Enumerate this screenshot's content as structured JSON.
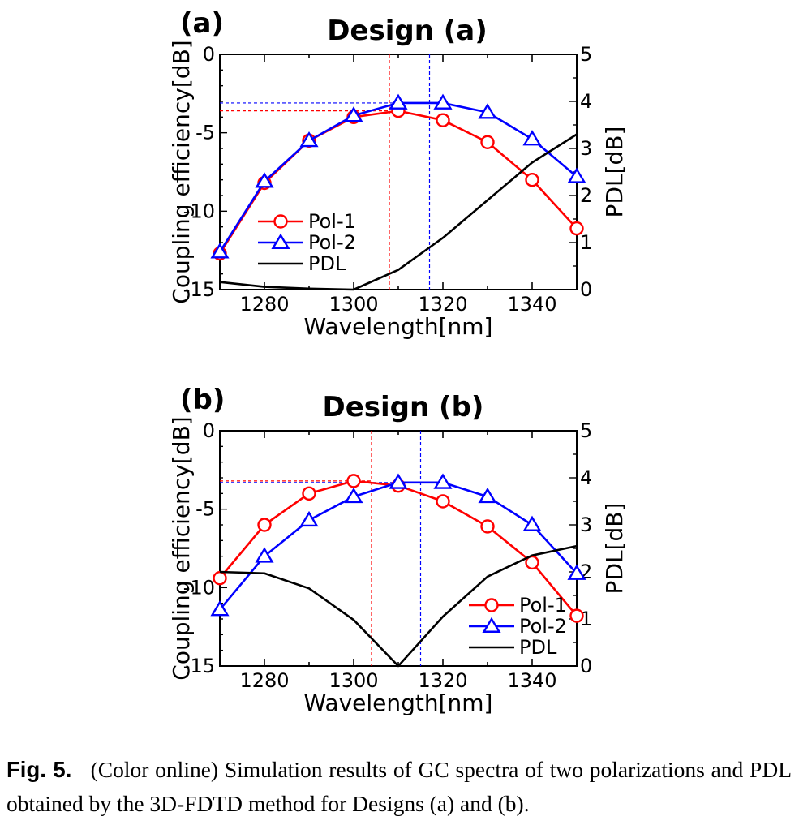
{
  "caption": {
    "label": "Fig. 5.",
    "text": "(Color online) Simulation results of GC spectra of two polarizations and PDL obtained by the 3D-FDTD method for Designs (a) and (b)."
  },
  "colors": {
    "pol1": "#ff0000",
    "pol2": "#0000ff",
    "pdl": "#000000"
  },
  "chart_data": [
    {
      "type": "line",
      "panel_label": "(a)",
      "title": "Design (a)",
      "xlabel": "Wavelength[nm]",
      "ylabel": "Coupling efficiency[dB]",
      "y2label": "PDL[dB]",
      "xlim": [
        1270,
        1350
      ],
      "ylim": [
        -15,
        0
      ],
      "y2lim": [
        0,
        5
      ],
      "xticks": [
        1280,
        1300,
        1320,
        1340
      ],
      "yticks": [
        0,
        -5,
        -10,
        -15
      ],
      "y2ticks": [
        5,
        4,
        3,
        2,
        1,
        0
      ],
      "legend_position": "lower-left",
      "x": [
        1270,
        1280,
        1290,
        1300,
        1310,
        1320,
        1330,
        1340,
        1350
      ],
      "series": [
        {
          "name": "Pol-1",
          "axis": "left",
          "marker": "circle",
          "values": [
            -12.7,
            -8.2,
            -5.5,
            -4.0,
            -3.6,
            -4.2,
            -5.6,
            -8.0,
            -11.1
          ]
        },
        {
          "name": "Pol-2",
          "axis": "left",
          "marker": "triangle",
          "values": [
            -12.6,
            -8.1,
            -5.5,
            -3.9,
            -3.1,
            -3.1,
            -3.7,
            -5.4,
            -7.8
          ]
        },
        {
          "name": "PDL",
          "axis": "right",
          "marker": "none",
          "values": [
            0.16,
            0.06,
            0.02,
            0.0,
            0.42,
            1.1,
            1.9,
            2.7,
            3.3
          ]
        }
      ],
      "reference_lines": [
        {
          "color": "pol1",
          "x": 1308,
          "y": -3.6
        },
        {
          "color": "pol2",
          "x": 1317,
          "y": -3.1
        }
      ]
    },
    {
      "type": "line",
      "panel_label": "(b)",
      "title": "Design (b)",
      "xlabel": "Wavelength[nm]",
      "ylabel": "Coupling efficiency[dB]",
      "y2label": "PDL[dB]",
      "xlim": [
        1270,
        1350
      ],
      "ylim": [
        -15,
        0
      ],
      "y2lim": [
        0,
        5
      ],
      "xticks": [
        1280,
        1300,
        1320,
        1340
      ],
      "yticks": [
        0,
        -5,
        -10,
        -15
      ],
      "y2ticks": [
        5,
        4,
        3,
        2,
        1,
        0
      ],
      "legend_position": "lower-right",
      "x": [
        1270,
        1280,
        1290,
        1300,
        1310,
        1320,
        1330,
        1340,
        1350
      ],
      "series": [
        {
          "name": "Pol-1",
          "axis": "left",
          "marker": "circle",
          "values": [
            -9.4,
            -6.0,
            -4.0,
            -3.2,
            -3.5,
            -4.5,
            -6.1,
            -8.4,
            -11.8
          ]
        },
        {
          "name": "Pol-2",
          "axis": "left",
          "marker": "triangle",
          "values": [
            -11.4,
            -8.0,
            -5.7,
            -4.2,
            -3.3,
            -3.3,
            -4.2,
            -6.0,
            -9.1
          ]
        },
        {
          "name": "PDL",
          "axis": "right",
          "marker": "none",
          "values": [
            2.0,
            1.97,
            1.65,
            0.98,
            0.0,
            1.05,
            1.9,
            2.35,
            2.55
          ]
        }
      ],
      "reference_lines": [
        {
          "color": "pol1",
          "x": 1304,
          "y": -3.2
        },
        {
          "color": "pol2",
          "x": 1315,
          "y": -3.3
        }
      ]
    }
  ]
}
